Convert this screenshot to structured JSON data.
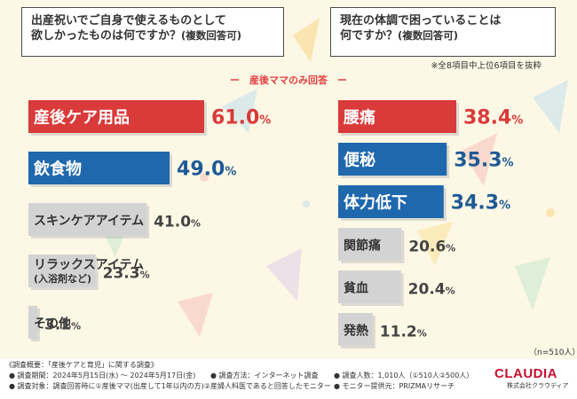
{
  "questions": {
    "left": {
      "line1": "出産祝いでご自身で使えるものとして",
      "line2": "欲しかったものは何ですか？",
      "suffix": "(複数回答可)"
    },
    "right": {
      "line1": "現在の体調で困っていることは",
      "line2": "何ですか？",
      "suffix": "(複数回答可)"
    }
  },
  "note_top": "※全8項目中上位6項目を抜粋",
  "subtitle": "ー　産後ママのみ回答　ー",
  "n_note": "（n=510人）",
  "colors": {
    "red": "#d93a3a",
    "blue": "#1f68ad",
    "gray": "#d3d3d3",
    "pct_red": "#d93a3a",
    "pct_blue": "#1f5a96",
    "pct_gray": "#444444"
  },
  "chart_data": [
    {
      "type": "bar",
      "orientation": "horizontal",
      "title": "出産祝いでご自身で使えるものとして欲しかったものは何ですか？(複数回答可)",
      "unit": "%",
      "categories": [
        "産後ケア用品",
        "飲食物",
        "スキンケアアイテム",
        "リラックスアイテム(入浴剤など)",
        "その他"
      ],
      "values": [
        61.0,
        49.0,
        41.0,
        23.3,
        3.1
      ],
      "labels": [
        {
          "main": "産後ケア用品",
          "sub": ""
        },
        {
          "main": "飲食物",
          "sub": ""
        },
        {
          "main": "スキンケアアイテム",
          "sub": ""
        },
        {
          "main": "リラックスアイテム",
          "sub": "(入浴剤など)"
        },
        {
          "main": "その他",
          "sub": ""
        }
      ],
      "styles": [
        "red",
        "blue",
        "gray",
        "gray",
        "gray"
      ]
    },
    {
      "type": "bar",
      "orientation": "horizontal",
      "title": "現在の体調で困っていることは何ですか？(複数回答可)",
      "unit": "%",
      "categories": [
        "腰痛",
        "便秘",
        "体力低下",
        "関節痛",
        "貧血",
        "発熱"
      ],
      "values": [
        38.4,
        35.3,
        34.3,
        20.6,
        20.4,
        11.2
      ],
      "labels": [
        {
          "main": "腰痛",
          "sub": ""
        },
        {
          "main": "便秘",
          "sub": ""
        },
        {
          "main": "体力低下",
          "sub": ""
        },
        {
          "main": "関節痛",
          "sub": ""
        },
        {
          "main": "貧血",
          "sub": ""
        },
        {
          "main": "発熱",
          "sub": ""
        }
      ],
      "styles": [
        "red",
        "blue",
        "blue",
        "gray",
        "gray",
        "gray"
      ]
    }
  ],
  "footer": {
    "overview": "《調査概要：「産後ケアと育児」に関する調査》",
    "period": "● 調査期間：2024年5月15日(水) ～ 2024年5月17日(金)",
    "method": "● 調査方法：インターネット調査",
    "count": "● 調査人数：1,010人（①510人②500人）",
    "target": "● 調査対象：調査回答時に①産後ママ(出産して1年以内の方)②産婦人科医であると回答したモニター",
    "provider": "● モニター提供元：PRIZMAリサーチ"
  },
  "logo": {
    "name": "CLAUDIA",
    "sub": "株式会社クラウディア"
  }
}
